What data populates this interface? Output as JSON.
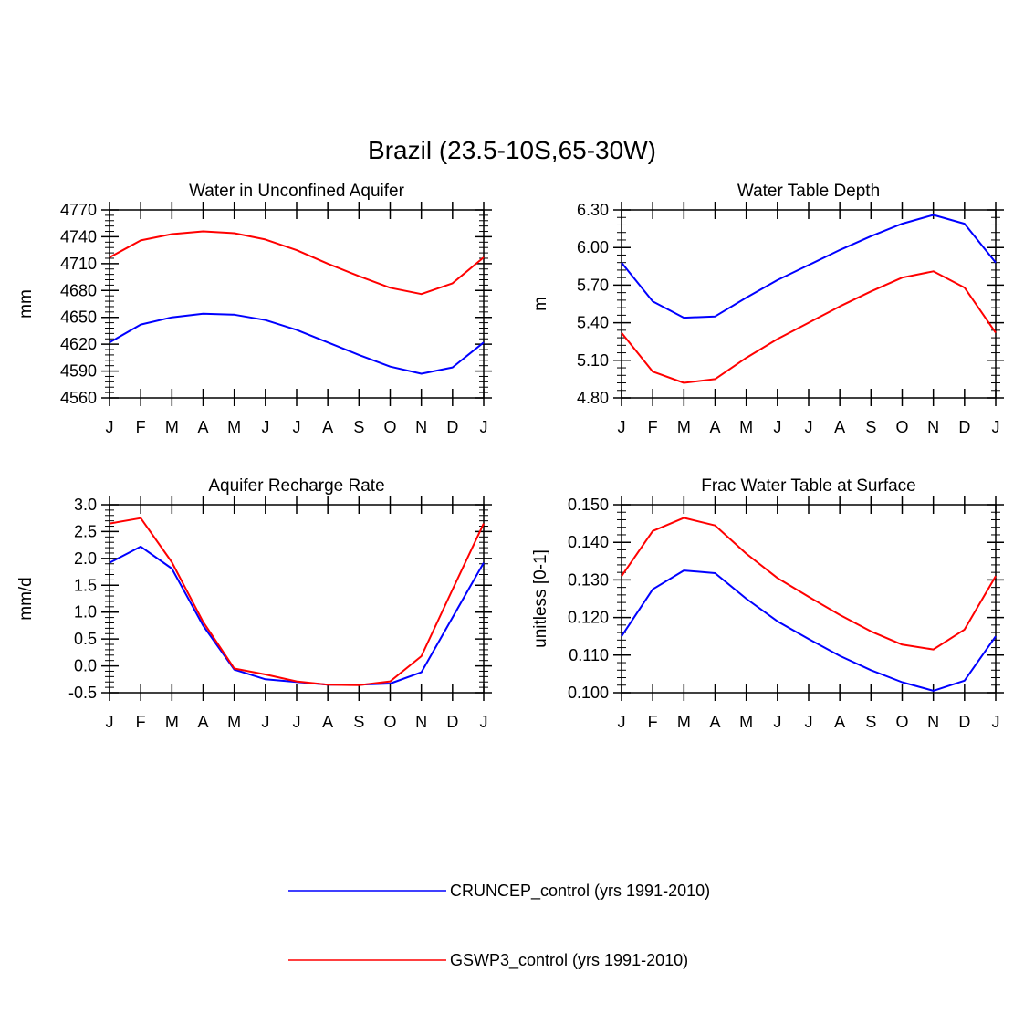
{
  "suptitle": "Brazil (23.5-10S,65-30W)",
  "months": [
    "J",
    "F",
    "M",
    "A",
    "M",
    "J",
    "J",
    "A",
    "S",
    "O",
    "N",
    "D",
    "J"
  ],
  "colors": {
    "CRUNCEP": "#0000ff",
    "GSWP3": "#ff0000",
    "axis": "#000000"
  },
  "legend": [
    {
      "name": "CRUNCEP_control (yrs 1991-2010)",
      "color": "#0000ff"
    },
    {
      "name": "GSWP3_control (yrs 1991-2010)",
      "color": "#ff0000"
    }
  ],
  "chart_data": [
    {
      "type": "line",
      "title": "Water in Unconfined Aquifer",
      "ylabel": "mm",
      "xlabel": "",
      "ylim": [
        4560,
        4770
      ],
      "yticks": [
        "4560",
        "4590",
        "4620",
        "4650",
        "4680",
        "4710",
        "4740",
        "4770"
      ],
      "series": [
        {
          "name": "CRUNCEP_control",
          "color": "#0000ff",
          "values": [
            4622,
            4642,
            4650,
            4654,
            4653,
            4647,
            4636,
            4622,
            4608,
            4595,
            4587,
            4594,
            4622
          ]
        },
        {
          "name": "GSWP3_control",
          "color": "#ff0000",
          "values": [
            4717,
            4736,
            4743,
            4746,
            4744,
            4737,
            4725,
            4710,
            4696,
            4683,
            4676,
            4688,
            4717
          ]
        }
      ]
    },
    {
      "type": "line",
      "title": "Water Table Depth",
      "ylabel": "m",
      "xlabel": "",
      "ylim": [
        4.8,
        6.3
      ],
      "yticks": [
        "4.80",
        "5.10",
        "5.40",
        "5.70",
        "6.00",
        "6.30"
      ],
      "series": [
        {
          "name": "CRUNCEP_control",
          "color": "#0000ff",
          "values": [
            5.88,
            5.57,
            5.44,
            5.45,
            5.6,
            5.74,
            5.86,
            5.98,
            6.09,
            6.19,
            6.26,
            6.19,
            5.88
          ]
        },
        {
          "name": "GSWP3_control",
          "color": "#ff0000",
          "values": [
            5.32,
            5.01,
            4.92,
            4.95,
            5.12,
            5.27,
            5.4,
            5.53,
            5.65,
            5.76,
            5.81,
            5.68,
            5.32
          ]
        }
      ]
    },
    {
      "type": "line",
      "title": "Aquifer Recharge Rate",
      "ylabel": "mm/d",
      "xlabel": "",
      "ylim": [
        -0.5,
        3.0
      ],
      "yticks": [
        "-0.5",
        "0.0",
        "0.5",
        "1.0",
        "1.5",
        "2.0",
        "2.5",
        "3.0"
      ],
      "series": [
        {
          "name": "CRUNCEP_control",
          "color": "#0000ff",
          "values": [
            1.92,
            2.22,
            1.81,
            0.75,
            -0.07,
            -0.25,
            -0.3,
            -0.35,
            -0.35,
            -0.33,
            -0.12,
            0.9,
            1.92
          ]
        },
        {
          "name": "GSWP3_control",
          "color": "#ff0000",
          "values": [
            2.65,
            2.75,
            1.93,
            0.82,
            -0.05,
            -0.16,
            -0.29,
            -0.35,
            -0.36,
            -0.29,
            0.18,
            1.42,
            2.65
          ]
        }
      ]
    },
    {
      "type": "line",
      "title": "Frac Water Table at Surface",
      "ylabel": "unitless [0-1]",
      "xlabel": "",
      "ylim": [
        0.1,
        0.15
      ],
      "yticks": [
        "0.100",
        "0.110",
        "0.120",
        "0.130",
        "0.140",
        "0.150"
      ],
      "series": [
        {
          "name": "CRUNCEP_control",
          "color": "#0000ff",
          "values": [
            0.115,
            0.1275,
            0.1325,
            0.1318,
            0.125,
            0.119,
            0.1143,
            0.1098,
            0.106,
            0.1028,
            0.1005,
            0.1032,
            0.115
          ]
        },
        {
          "name": "GSWP3_control",
          "color": "#ff0000",
          "values": [
            0.131,
            0.143,
            0.1465,
            0.1445,
            0.137,
            0.1305,
            0.1255,
            0.1207,
            0.1163,
            0.1128,
            0.1115,
            0.1168,
            0.131
          ]
        }
      ]
    }
  ]
}
